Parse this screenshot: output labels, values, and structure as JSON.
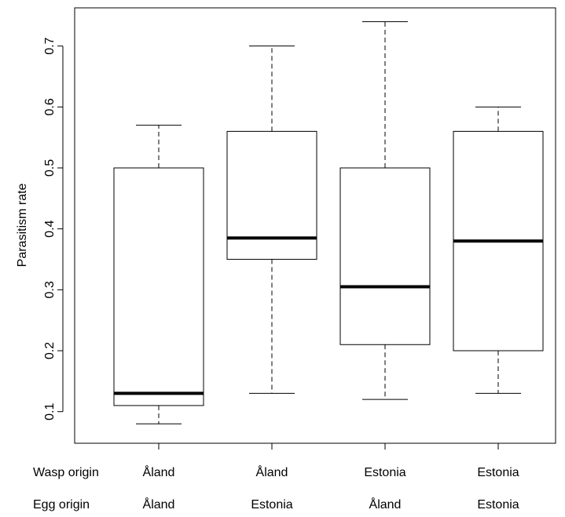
{
  "chart_data": {
    "type": "boxplot",
    "ylabel": "Parasitism rate",
    "ylim": [
      0.07,
      0.75
    ],
    "yticks": [
      0.1,
      0.2,
      0.3,
      0.4,
      0.5,
      0.6,
      0.7
    ],
    "row_labels": [
      "Wasp origin",
      "Egg origin"
    ],
    "groups": [
      {
        "wasp_origin": "Åland",
        "egg_origin": "Åland",
        "min": 0.08,
        "q1": 0.11,
        "median": 0.13,
        "q3": 0.5,
        "max": 0.57
      },
      {
        "wasp_origin": "Åland",
        "egg_origin": "Estonia",
        "min": 0.13,
        "q1": 0.35,
        "median": 0.385,
        "q3": 0.56,
        "max": 0.7
      },
      {
        "wasp_origin": "Estonia",
        "egg_origin": "Åland",
        "min": 0.12,
        "q1": 0.21,
        "median": 0.305,
        "q3": 0.5,
        "max": 0.74
      },
      {
        "wasp_origin": "Estonia",
        "egg_origin": "Estonia",
        "min": 0.13,
        "q1": 0.2,
        "median": 0.38,
        "q3": 0.56,
        "max": 0.6
      }
    ]
  }
}
